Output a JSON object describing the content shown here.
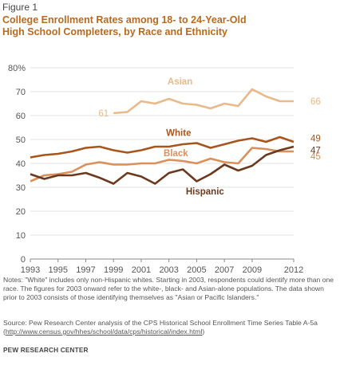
{
  "figure_label": "Figure 1",
  "title_line1": "College Enrollment Rates among 18- to 24-Year-Old",
  "title_line2": "High School Completers, by Race and Ethnicity",
  "notes": "Notes: \"White\" includes only non-Hispanic whites. Starting in 2003, respondents could identify more than one race. The figures for 2003 onward refer to the white-, black- and Asian-alone populations. The data shown prior to 2003 consists of those identifying themselves as \"Asian or Pacific Islanders.\"",
  "source_text": "Source: Pew Research Center analysis of the CPS Historical School Enrollment Time Series Table A-5a (",
  "source_url": "http://www.census.gov/hhes/school/data/cps/historical/index.html",
  "source_close": ")",
  "brand": "PEW RESEARCH CENTER",
  "chart_data": {
    "type": "line",
    "title": "College Enrollment Rates among 18- to 24-Year-Old High School Completers, by Race and Ethnicity",
    "ylim": [
      0,
      80
    ],
    "y_ticks": [
      "0",
      "10",
      "20",
      "30",
      "40",
      "50",
      "60",
      "70",
      "80%"
    ],
    "x_ticks": [
      "1993",
      "1995",
      "1997",
      "1999",
      "2001",
      "2003",
      "2005",
      "2007",
      "2009",
      "2012"
    ],
    "x": [
      1993,
      1994,
      1995,
      1996,
      1997,
      1998,
      1999,
      2000,
      2001,
      2002,
      2003,
      2004,
      2005,
      2006,
      2007,
      2008,
      2009,
      2010,
      2011,
      2012
    ],
    "grid": true,
    "series": [
      {
        "name": "Asian",
        "color": "#e8b98a",
        "values": [
          null,
          null,
          null,
          null,
          null,
          null,
          61,
          61.5,
          66,
          65,
          67,
          65,
          64.5,
          63,
          65,
          64,
          71,
          68,
          66,
          66
        ],
        "start_label": "61",
        "end_label": "66"
      },
      {
        "name": "White",
        "color": "#a6561d",
        "values": [
          42.5,
          43.5,
          44,
          45,
          46.5,
          47,
          45.5,
          44.5,
          45.5,
          47,
          47,
          48,
          48.5,
          46.5,
          48,
          49.5,
          50.5,
          49,
          51,
          49
        ],
        "end_label": "49"
      },
      {
        "name": "Black",
        "color": "#d9905a",
        "values": [
          32.5,
          35,
          35.5,
          36.5,
          39.5,
          40.5,
          39.5,
          39.5,
          40,
          40,
          41.5,
          41,
          40,
          42,
          40.5,
          40,
          46.5,
          46,
          45,
          45
        ],
        "end_label": "45"
      },
      {
        "name": "Hispanic",
        "color": "#6b3a1e",
        "values": [
          35.5,
          33.5,
          35,
          35,
          36,
          34,
          31.5,
          36,
          34.5,
          31.5,
          36,
          37.5,
          32.5,
          35.5,
          39.5,
          37,
          39,
          43.5,
          45.5,
          47
        ],
        "end_label": "47"
      }
    ]
  }
}
